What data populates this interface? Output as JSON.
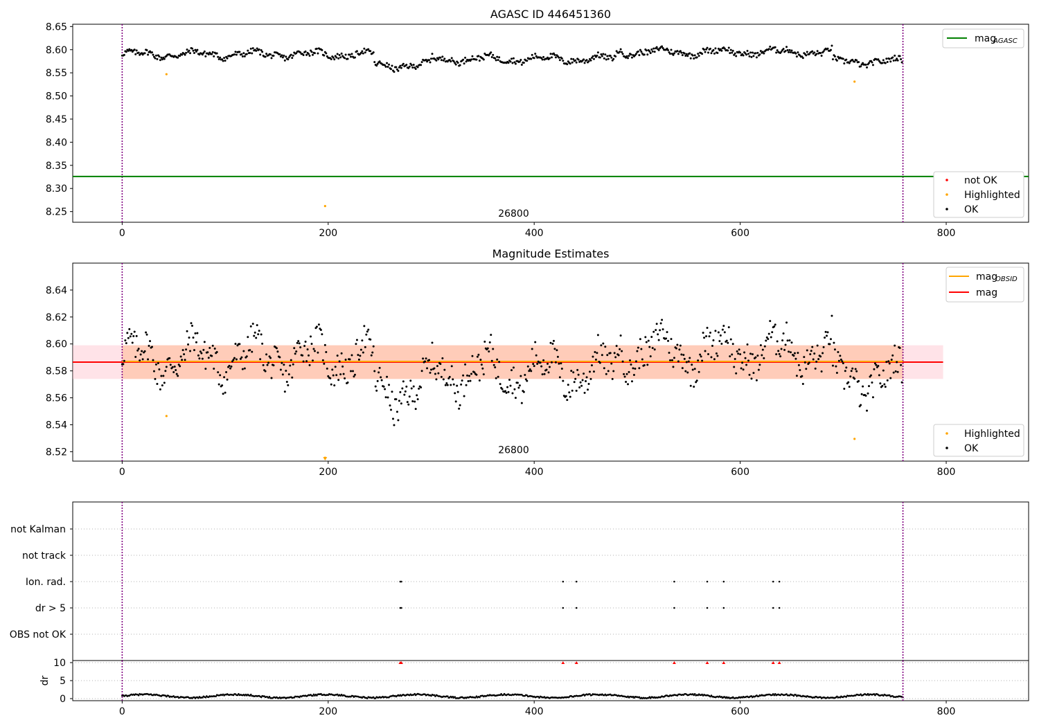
{
  "chart_data": [
    {
      "type": "scatter",
      "title": "AGASC ID 446451360",
      "xlim": [
        -48,
        880
      ],
      "ylim": [
        8.227,
        8.655
      ],
      "x_ticks": [
        0,
        200,
        400,
        600,
        800
      ],
      "x_tick_labels": [
        "0",
        "200",
        "400",
        "600",
        "800"
      ],
      "y_ticks": [
        8.25,
        8.3,
        8.35,
        8.4,
        8.45,
        8.5,
        8.55,
        8.6,
        8.65
      ],
      "y_tick_labels": [
        "8.25",
        "8.30",
        "8.35",
        "8.40",
        "8.45",
        "8.50",
        "8.55",
        "8.60",
        "8.65"
      ],
      "vlines": [
        0,
        758
      ],
      "hline": {
        "name": "mag",
        "subscript": "AGASC",
        "y": 8.326,
        "color": "#008000"
      },
      "obsid_label": {
        "text": "26800",
        "x": 380,
        "y": 8.239
      },
      "highlighted_points": [
        [
          43,
          8.547
        ],
        [
          197,
          8.262
        ],
        [
          711,
          8.531
        ]
      ],
      "ok_series_segments": [
        {
          "x0": 0,
          "x1": 245,
          "base": 8.59
        },
        {
          "x0": 245,
          "x1": 300,
          "base": 8.566
        },
        {
          "x0": 300,
          "x1": 480,
          "base": 8.58
        },
        {
          "x0": 480,
          "x1": 690,
          "base": 8.595
        },
        {
          "x0": 690,
          "x1": 758,
          "base": 8.574
        }
      ],
      "legend_top": [
        {
          "label": "mag",
          "subscript": "AGASC",
          "color": "#008000",
          "kind": "line"
        }
      ],
      "legend_bottom": [
        {
          "label": "not OK",
          "color": "#ff0000",
          "kind": "dot"
        },
        {
          "label": "Highlighted",
          "color": "#ffa500",
          "kind": "dot"
        },
        {
          "label": "OK",
          "color": "#000000",
          "kind": "dot"
        }
      ],
      "grid": false
    },
    {
      "type": "scatter",
      "title": "Magnitude Estimates",
      "xlim": [
        -48,
        880
      ],
      "ylim": [
        8.513,
        8.66
      ],
      "x_ticks": [
        0,
        200,
        400,
        600,
        800
      ],
      "x_tick_labels": [
        "0",
        "200",
        "400",
        "600",
        "800"
      ],
      "y_ticks": [
        8.52,
        8.54,
        8.56,
        8.58,
        8.6,
        8.62,
        8.64
      ],
      "y_tick_labels": [
        "8.52",
        "8.54",
        "8.56",
        "8.58",
        "8.60",
        "8.62",
        "8.64"
      ],
      "vlines": [
        0,
        758
      ],
      "mag_line": {
        "y": 8.5865,
        "band": [
          8.574,
          8.599
        ],
        "x_range": [
          -48,
          797
        ],
        "color": "#ff0000"
      },
      "mag_obsid_line": {
        "y": 8.587,
        "band": [
          8.574,
          8.599
        ],
        "x_range": [
          0,
          758
        ],
        "color": "#ffa500"
      },
      "obsid_label": {
        "text": "26800",
        "x": 380,
        "y": 8.519
      },
      "highlighted_points": [
        [
          43,
          8.5465
        ],
        [
          197,
          8.5155
        ],
        [
          711,
          8.5295
        ]
      ],
      "highlighted_markers": [
        {
          "x": 197,
          "y": 8.5145,
          "marker": "triangle-down"
        }
      ],
      "legend_top": [
        {
          "label": "mag",
          "subscript": "OBSID",
          "color": "#ffa500",
          "kind": "line"
        },
        {
          "label": "mag",
          "subscript": "",
          "color": "#ff0000",
          "kind": "line"
        }
      ],
      "legend_bottom": [
        {
          "label": "Highlighted",
          "color": "#ffa500",
          "kind": "dot"
        },
        {
          "label": "OK",
          "color": "#000000",
          "kind": "dot"
        }
      ],
      "grid": false
    },
    {
      "type": "scatter",
      "title": "",
      "xlim": [
        -48,
        880
      ],
      "categories": [
        "not Kalman",
        "not track",
        "Ion. rad.",
        "dr > 5",
        "OBS not OK"
      ],
      "flag_times": [
        {
          "category": "Ion. rad.",
          "x": [
            270,
            271,
            428,
            441,
            536,
            568,
            584,
            632,
            638
          ]
        },
        {
          "category": "dr > 5",
          "x": [
            270,
            271,
            428,
            441,
            536,
            568,
            584,
            632,
            638
          ]
        }
      ],
      "grid": "horizontal-dotted",
      "vlines": [
        0,
        758
      ]
    },
    {
      "type": "scatter",
      "title": "",
      "ylabel": "dr",
      "xlim": [
        -48,
        880
      ],
      "ylim": [
        0,
        10
      ],
      "y_ticks": [
        0,
        5,
        10
      ],
      "y_tick_labels": [
        "0",
        "5",
        "10"
      ],
      "x_ticks": [
        0,
        200,
        400,
        600,
        800
      ],
      "x_tick_labels": [
        "0",
        "200",
        "400",
        "600",
        "800"
      ],
      "clipped_points_x": [
        270,
        271,
        428,
        441,
        536,
        568,
        584,
        632,
        638
      ],
      "dr_baseline": 0.7,
      "vlines": [
        0,
        758
      ],
      "grid": "horizontal-dotted"
    }
  ]
}
